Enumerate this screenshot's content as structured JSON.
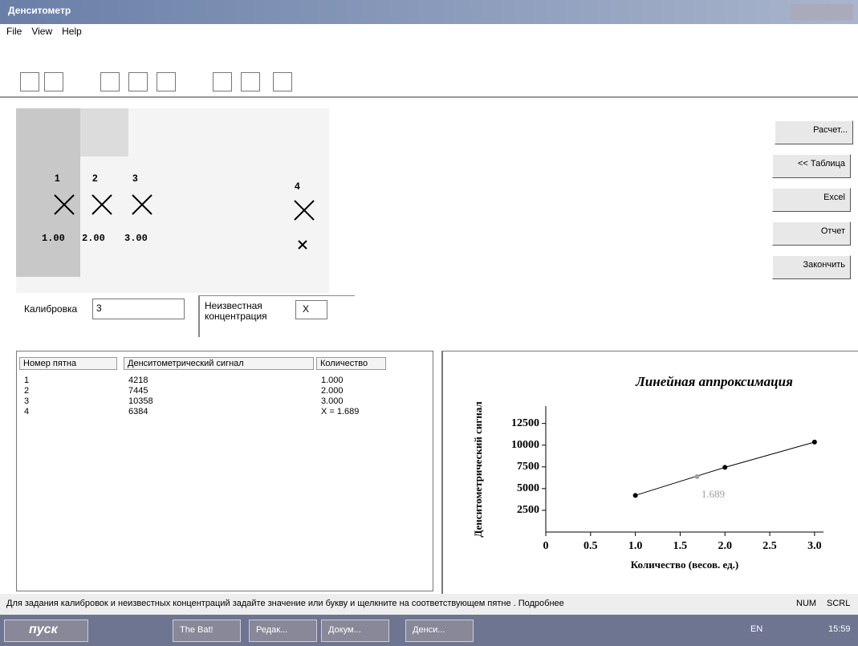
{
  "window": {
    "title": "Денситометр"
  },
  "menu": [
    "File",
    "View",
    "Help"
  ],
  "spots": [
    {
      "label": "1",
      "amount": "1.00"
    },
    {
      "label": "2",
      "amount": "2.00"
    },
    {
      "label": "3",
      "amount": "3.00"
    },
    {
      "label": "4"
    }
  ],
  "buttons": [
    "Расчет...",
    "<< Таблица",
    "Excel",
    "Отчет",
    "Закончить"
  ],
  "calibration": {
    "label": "Калибровка",
    "value": "3"
  },
  "concentration": {
    "label": [
      "Неизвестная",
      "концентрация"
    ],
    "value": "X"
  },
  "table": {
    "headers": [
      "Номер пятна",
      "Денситометрический сигнал",
      "Количество"
    ],
    "rows": [
      [
        "1",
        "4218",
        "1.000"
      ],
      [
        "2",
        "7445",
        "2.000"
      ],
      [
        "3",
        "10358",
        "3.000"
      ],
      [
        "4",
        "6384",
        "X = 1.689"
      ]
    ]
  },
  "chart_data": {
    "type": "line",
    "title": "Линейная аппроксимация",
    "x_label": "Количество (весов. ед.)",
    "y_label": "Денситометрический сигнал",
    "x": [
      1,
      2,
      3
    ],
    "values": [
      4218,
      7445,
      10358
    ],
    "color": "#000000",
    "unknown_point": {
      "x": 1.689,
      "y": 6384,
      "color": "#a0a0a0"
    },
    "xlim": [
      0,
      3.1
    ],
    "ylim": [
      0,
      14500
    ],
    "xticks": [
      0,
      0.5,
      {
        "value": 1,
        "label": "1.0"
      },
      1.5,
      {
        "value": 2,
        "label": "2.0"
      },
      2.5,
      {
        "value": 3,
        "label": "3.0"
      }
    ],
    "yticks": [
      2500,
      5000,
      7500,
      10000,
      12500
    ],
    "grid": false
  },
  "status_bar": {
    "message": "Для задания калибровок и неизвестных концентраций задайте значение или букву и щелкните на соответствующем пятне . Подробнее",
    "panels": [
      "NUM",
      "SCRL"
    ]
  },
  "taskbar": {
    "start": "пуск",
    "items": [
      "The Bat!",
      "Редак...",
      "Докум...",
      "Денси..."
    ],
    "language": "EN",
    "clock": "15:59"
  }
}
